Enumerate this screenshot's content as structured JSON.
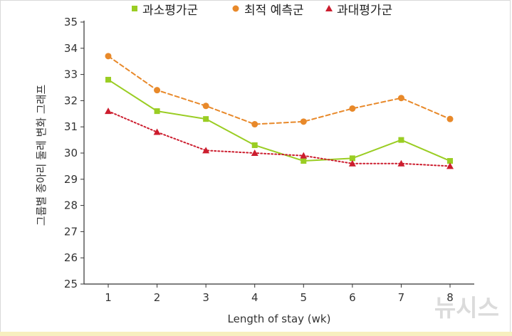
{
  "chart_data": {
    "type": "line",
    "categories": [
      "1",
      "2",
      "3",
      "4",
      "5",
      "6",
      "7",
      "8"
    ],
    "x": [
      1,
      2,
      3,
      4,
      5,
      6,
      7,
      8
    ],
    "xlabel": "Length of stay (wk)",
    "ylabel": "그룹별 종아리 둘레 변화 그래프",
    "ylim": [
      25,
      35
    ],
    "yticks": [
      25,
      26,
      27,
      28,
      29,
      30,
      31,
      32,
      33,
      34,
      35
    ],
    "grid": false,
    "legend_position": "top",
    "series": [
      {
        "name": "과소평가군",
        "values": [
          32.8,
          31.6,
          31.3,
          30.3,
          29.7,
          29.8,
          30.5,
          29.7
        ],
        "color": "#9acd23",
        "marker": "square",
        "line": "solid"
      },
      {
        "name": "최적 예측군",
        "values": [
          33.7,
          32.4,
          31.8,
          31.1,
          31.2,
          31.7,
          32.1,
          31.3
        ],
        "color": "#e8892a",
        "marker": "circle",
        "line": "dashed"
      },
      {
        "name": "과대평가군",
        "values": [
          31.6,
          30.8,
          30.1,
          30.0,
          29.9,
          29.6,
          29.6,
          29.5
        ],
        "color": "#cc1d2e",
        "marker": "triangle",
        "line": "dotted"
      }
    ]
  },
  "watermark": {
    "text": "뉴시스"
  }
}
